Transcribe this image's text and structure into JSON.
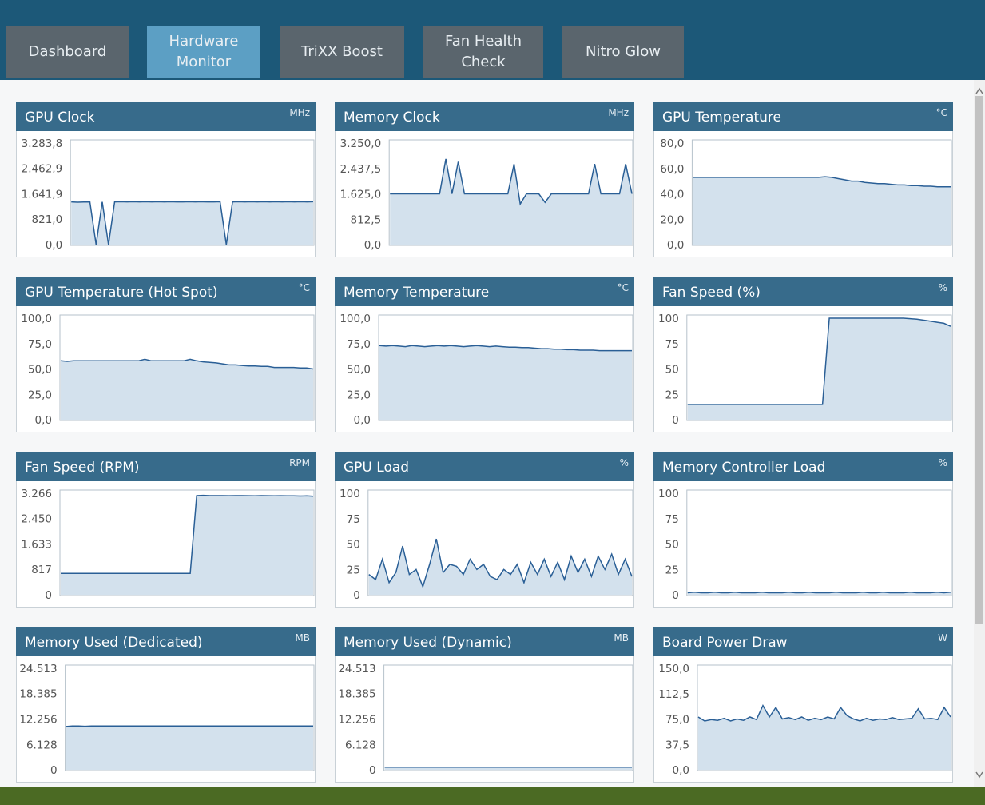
{
  "tabs": [
    "Dashboard",
    "Hardware Monitor",
    "TriXX Boost",
    "Fan Health Check",
    "Nitro Glow"
  ],
  "active_tab": 1,
  "panels": [
    {
      "title": "GPU Clock",
      "unit": "MHz",
      "ylim": [
        0,
        3283.8
      ],
      "yticks": [
        {
          "value": 0,
          "label": "0,0"
        },
        {
          "value": 821,
          "label": "821,0"
        },
        {
          "value": 1641.9,
          "label": "1.641,9"
        },
        {
          "value": 2462.9,
          "label": "2.462,9"
        },
        {
          "value": 3283.8,
          "label": "3.283,8"
        }
      ],
      "values": [
        1380,
        1370,
        1375,
        1380,
        0,
        1380,
        0,
        1380,
        1385,
        1380,
        1385,
        1380,
        1385,
        1380,
        1385,
        1380,
        1385,
        1380,
        1380,
        1385,
        1380,
        1385,
        1380,
        1380,
        1385,
        0,
        1380,
        1385,
        1380,
        1385,
        1380,
        1385,
        1380,
        1385,
        1380,
        1385,
        1380,
        1385,
        1380,
        1385
      ]
    },
    {
      "title": "Memory Clock",
      "unit": "MHz",
      "ylim": [
        0,
        3250
      ],
      "yticks": [
        {
          "value": 0,
          "label": "0,0"
        },
        {
          "value": 812.5,
          "label": "812,5"
        },
        {
          "value": 1625,
          "label": "1.625,0"
        },
        {
          "value": 2437.5,
          "label": "2.437,5"
        },
        {
          "value": 3250,
          "label": "3.250,0"
        }
      ],
      "values": [
        1625,
        1625,
        1625,
        1625,
        1625,
        1625,
        1625,
        1625,
        1625,
        2740,
        1625,
        2650,
        1625,
        1625,
        1625,
        1625,
        1625,
        1625,
        1625,
        1625,
        2580,
        1300,
        1625,
        1625,
        1625,
        1350,
        1625,
        1625,
        1625,
        1625,
        1625,
        1625,
        1625,
        2580,
        1625,
        1625,
        1625,
        1625,
        2580,
        1625
      ]
    },
    {
      "title": "GPU Temperature",
      "unit": "°C",
      "ylim": [
        0,
        80
      ],
      "yticks": [
        {
          "value": 0,
          "label": "0,0"
        },
        {
          "value": 20,
          "label": "20,0"
        },
        {
          "value": 40,
          "label": "40,0"
        },
        {
          "value": 60,
          "label": "60,0"
        },
        {
          "value": 80,
          "label": "80,0"
        }
      ],
      "values": [
        53,
        53,
        53,
        53,
        53,
        53,
        53,
        53,
        53,
        53,
        53,
        53,
        53,
        53,
        53,
        53,
        53,
        53,
        53,
        53,
        53.5,
        53,
        52,
        51,
        50,
        50,
        49,
        48.5,
        48,
        48,
        47.5,
        47,
        47,
        46.5,
        46.5,
        46,
        46,
        45.5,
        45.5,
        45.5
      ]
    },
    {
      "title": "GPU Temperature (Hot Spot)",
      "unit": "°C",
      "ylim": [
        0,
        100
      ],
      "yticks": [
        {
          "value": 0,
          "label": "0,0"
        },
        {
          "value": 25,
          "label": "25,0"
        },
        {
          "value": 50,
          "label": "50,0"
        },
        {
          "value": 75,
          "label": "75,0"
        },
        {
          "value": 100,
          "label": "100,0"
        }
      ],
      "values": [
        58,
        57.5,
        58,
        58,
        58,
        58,
        58,
        58,
        58,
        58,
        58,
        58,
        58,
        59.5,
        58,
        58,
        58,
        58,
        58,
        58,
        59.5,
        58,
        57,
        56.5,
        56,
        55,
        54,
        54,
        53.5,
        53,
        53,
        52.5,
        52.5,
        51.5,
        51.5,
        51.5,
        51.5,
        51,
        51,
        50
      ]
    },
    {
      "title": "Memory Temperature",
      "unit": "°C",
      "ylim": [
        0,
        100
      ],
      "yticks": [
        {
          "value": 0,
          "label": "0,0"
        },
        {
          "value": 25,
          "label": "25,0"
        },
        {
          "value": 50,
          "label": "50,0"
        },
        {
          "value": 75,
          "label": "75,0"
        },
        {
          "value": 100,
          "label": "100,0"
        }
      ],
      "values": [
        73,
        72.5,
        73,
        72.5,
        72,
        73,
        72.5,
        72,
        72.5,
        73,
        72.5,
        73,
        72.5,
        72,
        72.5,
        73,
        72.5,
        72,
        72.5,
        72,
        71.5,
        71.5,
        71,
        71,
        70.5,
        70,
        70,
        69.5,
        69.5,
        69,
        69,
        68.5,
        68.5,
        68.5,
        68,
        68,
        68,
        68,
        68,
        68
      ]
    },
    {
      "title": "Fan Speed (%)",
      "unit": "%",
      "ylim": [
        0,
        100
      ],
      "yticks": [
        0,
        25,
        50,
        75,
        100
      ],
      "values": [
        15,
        15,
        15,
        15,
        15,
        15,
        15,
        15,
        15,
        15,
        15,
        15,
        15,
        15,
        15,
        15,
        15,
        15,
        15,
        15,
        15,
        100,
        100,
        100,
        100,
        100,
        100,
        100,
        100,
        100,
        100,
        100,
        100,
        99.5,
        99,
        98,
        97,
        96,
        95,
        92
      ]
    },
    {
      "title": "Fan Speed (RPM)",
      "unit": "RPM",
      "ylim": [
        0,
        3266
      ],
      "yticks": [
        0,
        817,
        {
          "value": 1633,
          "label": "1.633"
        },
        {
          "value": 2450,
          "label": "2.450"
        },
        {
          "value": 3266,
          "label": "3.266"
        }
      ],
      "values": [
        690,
        690,
        690,
        690,
        690,
        690,
        690,
        690,
        690,
        690,
        690,
        690,
        690,
        690,
        690,
        690,
        690,
        690,
        690,
        690,
        690,
        3190,
        3200,
        3190,
        3190,
        3190,
        3185,
        3190,
        3190,
        3185,
        3180,
        3190,
        3185,
        3180,
        3185,
        3180,
        3180,
        3175,
        3180,
        3170
      ]
    },
    {
      "title": "GPU Load",
      "unit": "%",
      "ylim": [
        0,
        100
      ],
      "yticks": [
        0,
        25,
        50,
        75,
        100
      ],
      "values": [
        20,
        15,
        35,
        12,
        22,
        48,
        20,
        25,
        8,
        30,
        55,
        22,
        30,
        28,
        20,
        35,
        25,
        30,
        18,
        15,
        25,
        20,
        30,
        12,
        32,
        20,
        35,
        18,
        32,
        15,
        38,
        22,
        35,
        18,
        38,
        25,
        40,
        20,
        35,
        18
      ]
    },
    {
      "title": "Memory Controller Load",
      "unit": "%",
      "ylim": [
        0,
        100
      ],
      "yticks": [
        0,
        25,
        50,
        75,
        100
      ],
      "values": [
        2,
        2.5,
        2,
        2,
        2.5,
        2,
        2,
        2.5,
        2,
        2,
        2,
        2.5,
        2,
        2,
        2,
        2.5,
        2,
        2,
        2.5,
        2,
        2,
        2,
        2.5,
        2,
        2,
        2,
        2.5,
        2,
        2,
        2.5,
        2,
        2,
        2,
        2.5,
        2,
        2,
        2,
        2.5,
        2,
        2.5
      ]
    },
    {
      "title": "Memory Used (Dedicated)",
      "unit": "MB",
      "ylim": [
        0,
        24513
      ],
      "yticks": [
        0,
        {
          "value": 6128,
          "label": "6.128"
        },
        {
          "value": 12256,
          "label": "12.256"
        },
        {
          "value": 18385,
          "label": "18.385"
        },
        {
          "value": 24513,
          "label": "24.513"
        }
      ],
      "values": [
        10450,
        10550,
        10550,
        10500,
        10550,
        10550,
        10550,
        10550,
        10550,
        10550,
        10550,
        10550,
        10550,
        10550,
        10550,
        10550,
        10550,
        10550,
        10550,
        10550,
        10550,
        10550,
        10550,
        10550,
        10550,
        10550,
        10550,
        10550,
        10550,
        10550,
        10550,
        10550,
        10550,
        10550,
        10550,
        10550,
        10550,
        10550,
        10550,
        10550
      ]
    },
    {
      "title": "Memory Used (Dynamic)",
      "unit": "MB",
      "ylim": [
        0,
        24513
      ],
      "yticks": [
        0,
        {
          "value": 6128,
          "label": "6.128"
        },
        {
          "value": 12256,
          "label": "12.256"
        },
        {
          "value": 18385,
          "label": "18.385"
        },
        {
          "value": 24513,
          "label": "24.513"
        }
      ],
      "values": [
        620,
        620,
        620,
        620,
        620,
        620,
        620,
        620,
        620,
        620,
        620,
        620,
        620,
        620,
        620,
        620,
        620,
        620,
        620,
        620,
        620,
        620,
        620,
        620,
        620,
        620,
        620,
        620,
        620,
        620,
        620,
        620,
        620,
        620,
        620,
        620,
        620,
        620,
        620,
        620
      ]
    },
    {
      "title": "Board Power Draw",
      "unit": "W",
      "ylim": [
        0,
        150
      ],
      "yticks": [
        {
          "value": 0,
          "label": "0,0"
        },
        {
          "value": 37.5,
          "label": "37,5"
        },
        {
          "value": 75,
          "label": "75,0"
        },
        {
          "value": 112.5,
          "label": "112,5"
        },
        {
          "value": 150,
          "label": "150,0"
        }
      ],
      "values": [
        78,
        72,
        74,
        73,
        76,
        72,
        75,
        73,
        78,
        74,
        95,
        78,
        92,
        75,
        77,
        74,
        78,
        73,
        76,
        74,
        78,
        75,
        92,
        80,
        75,
        72,
        76,
        73,
        75,
        74,
        77,
        74,
        75,
        76,
        90,
        75,
        76,
        74,
        92,
        78
      ]
    }
  ]
}
